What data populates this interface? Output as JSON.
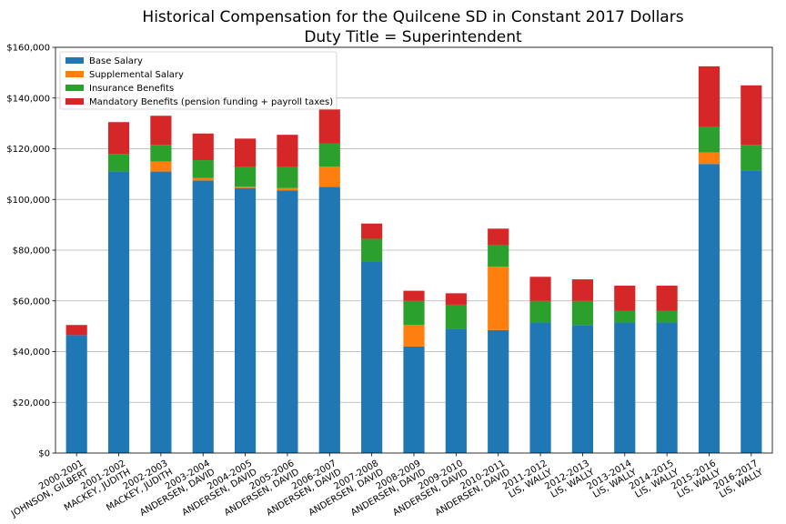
{
  "chart_data": {
    "type": "bar",
    "stacked": true,
    "title": "Historical Compensation for the Quilcene SD in Constant 2017 Dollars",
    "subtitle": "Duty Title = Superintendent",
    "categories": [
      [
        "2000-2001",
        "JOHNSON, GILBERT"
      ],
      [
        "2001-2002",
        "MACKEY, JUDITH"
      ],
      [
        "2002-2003",
        "MACKEY, JUDITH"
      ],
      [
        "2003-2004",
        "ANDERSEN, DAVID"
      ],
      [
        "2004-2005",
        "ANDERSEN, DAVID"
      ],
      [
        "2005-2006",
        "ANDERSEN, DAVID"
      ],
      [
        "2006-2007",
        "ANDERSEN, DAVID"
      ],
      [
        "2007-2008",
        "ANDERSEN, DAVID"
      ],
      [
        "2008-2009",
        "ANDERSEN, DAVID"
      ],
      [
        "2009-2010",
        "ANDERSEN, DAVID"
      ],
      [
        "2010-2011",
        "ANDERSEN, DAVID"
      ],
      [
        "2011-2012",
        "LIS, WALLY"
      ],
      [
        "2012-2013",
        "LIS, WALLY"
      ],
      [
        "2013-2014",
        "LIS, WALLY"
      ],
      [
        "2014-2015",
        "LIS, WALLY"
      ],
      [
        "2015-2016",
        "LIS, WALLY"
      ],
      [
        "2016-2017",
        "LIS, WALLY"
      ]
    ],
    "series": [
      {
        "name": "Base Salary",
        "color": "#1f77b4",
        "values": [
          46500,
          111000,
          111000,
          107500,
          104500,
          103500,
          105000,
          75500,
          42000,
          49000,
          48500,
          51500,
          50500,
          51500,
          51500,
          114000,
          111500
        ]
      },
      {
        "name": "Supplemental Salary",
        "color": "#ff7f0e",
        "values": [
          0,
          0,
          4000,
          1000,
          500,
          1000,
          8000,
          0,
          8500,
          0,
          25000,
          0,
          0,
          0,
          0,
          4500,
          0
        ]
      },
      {
        "name": "Insurance Benefits",
        "color": "#2ca02c",
        "values": [
          0,
          7000,
          6500,
          7000,
          8000,
          8500,
          9000,
          9000,
          9500,
          9500,
          8500,
          8500,
          9500,
          4500,
          4500,
          10000,
          10000
        ]
      },
      {
        "name": "Mandatory Benefits (pension funding + payroll taxes)",
        "color": "#d62728",
        "values": [
          4000,
          12500,
          11500,
          10500,
          11000,
          12500,
          13500,
          6000,
          4000,
          4500,
          6500,
          9500,
          8500,
          10000,
          10000,
          24000,
          23500
        ]
      }
    ],
    "y_ticks": [
      0,
      20000,
      40000,
      60000,
      80000,
      100000,
      120000,
      140000,
      160000
    ],
    "y_tick_labels": [
      "$0",
      "$20,000",
      "$40,000",
      "$60,000",
      "$80,000",
      "$100,000",
      "$120,000",
      "$140,000",
      "$160,000"
    ],
    "ylim": [
      0,
      160000
    ],
    "xlabel": "",
    "ylabel": "",
    "grid": "horizontal",
    "legend_position": "top-left"
  }
}
